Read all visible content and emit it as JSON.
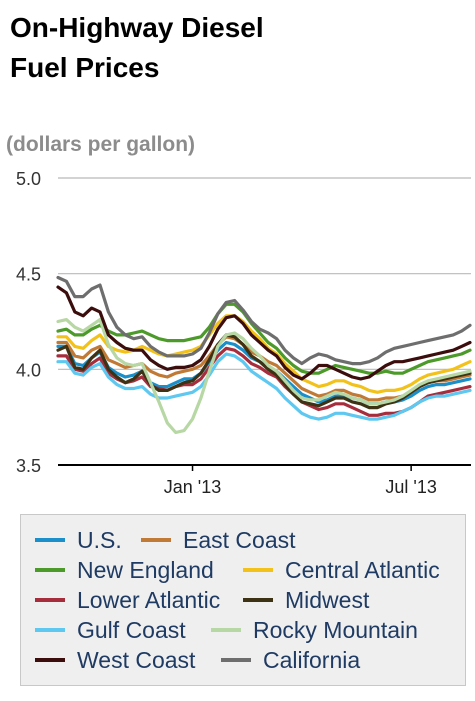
{
  "title_line1": "On-Highway Diesel",
  "title_line2": "Fuel Prices",
  "units": "(dollars per gallon)",
  "chart_data": {
    "type": "line",
    "title": "On-Highway Diesel Fuel Prices",
    "ylabel": "(dollars per gallon)",
    "ylim": [
      3.5,
      5.0
    ],
    "yticks": [
      "5.0",
      "4.5",
      "4.0",
      "3.5"
    ],
    "ytick_values": [
      5.0,
      4.5,
      4.0,
      3.5
    ],
    "xticks": [
      "Jan '13",
      "Jul '13"
    ],
    "xtick_weeks": [
      16,
      42
    ],
    "grid": true,
    "legend_position": "bottom",
    "series": [
      {
        "name": "U.S.",
        "color": "#1a8fc9",
        "values": [
          4.12,
          4.12,
          4.03,
          4.02,
          4.06,
          4.09,
          4.01,
          3.98,
          3.96,
          3.97,
          3.99,
          3.93,
          3.91,
          3.91,
          3.93,
          3.95,
          3.95,
          3.98,
          4.04,
          4.1,
          4.14,
          4.13,
          4.1,
          4.06,
          4.04,
          4.01,
          3.99,
          3.95,
          3.91,
          3.87,
          3.85,
          3.83,
          3.84,
          3.86,
          3.86,
          3.85,
          3.84,
          3.82,
          3.82,
          3.83,
          3.83,
          3.84,
          3.86,
          3.89,
          3.91,
          3.92,
          3.92,
          3.93,
          3.94,
          3.95
        ]
      },
      {
        "name": "East Coast",
        "color": "#c07a35",
        "values": [
          4.14,
          4.14,
          4.07,
          4.06,
          4.1,
          4.12,
          4.05,
          4.03,
          4.01,
          4.02,
          4.03,
          3.99,
          3.97,
          3.96,
          3.98,
          3.99,
          4.0,
          4.02,
          4.07,
          4.13,
          4.17,
          4.16,
          4.13,
          4.09,
          4.07,
          4.04,
          4.02,
          3.98,
          3.94,
          3.9,
          3.88,
          3.86,
          3.87,
          3.89,
          3.89,
          3.87,
          3.86,
          3.84,
          3.84,
          3.85,
          3.85,
          3.86,
          3.88,
          3.91,
          3.93,
          3.94,
          3.94,
          3.95,
          3.96,
          3.97
        ]
      },
      {
        "name": "New England",
        "color": "#4c9a2a",
        "values": [
          4.2,
          4.21,
          4.18,
          4.18,
          4.21,
          4.23,
          4.2,
          4.18,
          4.18,
          4.19,
          4.2,
          4.18,
          4.16,
          4.15,
          4.15,
          4.15,
          4.16,
          4.17,
          4.22,
          4.29,
          4.34,
          4.34,
          4.3,
          4.24,
          4.19,
          4.14,
          4.11,
          4.06,
          4.02,
          3.99,
          3.98,
          3.98,
          4.0,
          4.02,
          4.01,
          4.0,
          3.99,
          3.98,
          3.98,
          3.99,
          3.98,
          3.98,
          4.0,
          4.02,
          4.04,
          4.05,
          4.06,
          4.07,
          4.08,
          4.1
        ]
      },
      {
        "name": "Central Atlantic",
        "color": "#f2c21b",
        "values": [
          4.17,
          4.17,
          4.12,
          4.11,
          4.15,
          4.18,
          4.12,
          4.1,
          4.09,
          4.1,
          4.12,
          4.1,
          4.08,
          4.07,
          4.08,
          4.09,
          4.1,
          4.12,
          4.18,
          4.24,
          4.28,
          4.28,
          4.25,
          4.2,
          4.16,
          4.11,
          4.08,
          4.03,
          3.99,
          3.95,
          3.93,
          3.91,
          3.92,
          3.94,
          3.94,
          3.92,
          3.91,
          3.89,
          3.88,
          3.89,
          3.89,
          3.9,
          3.92,
          3.95,
          3.97,
          3.98,
          3.99,
          4.0,
          4.02,
          4.04
        ]
      },
      {
        "name": "Lower Atlantic",
        "color": "#a62e3c",
        "values": [
          4.07,
          4.07,
          4.0,
          3.99,
          4.03,
          4.06,
          3.98,
          3.95,
          3.93,
          3.94,
          3.96,
          3.91,
          3.9,
          3.89,
          3.91,
          3.92,
          3.92,
          3.95,
          4.01,
          4.07,
          4.11,
          4.1,
          4.07,
          4.03,
          4.01,
          3.98,
          3.96,
          3.91,
          3.87,
          3.83,
          3.81,
          3.79,
          3.8,
          3.82,
          3.82,
          3.8,
          3.78,
          3.76,
          3.76,
          3.77,
          3.77,
          3.78,
          3.8,
          3.83,
          3.86,
          3.87,
          3.88,
          3.89,
          3.9,
          3.91
        ]
      },
      {
        "name": "Midwest",
        "color": "#3e3215",
        "values": [
          4.1,
          4.12,
          4.01,
          4.0,
          4.06,
          4.1,
          4.0,
          3.96,
          3.93,
          3.95,
          3.99,
          3.92,
          3.89,
          3.89,
          3.91,
          3.93,
          3.94,
          3.98,
          4.05,
          4.13,
          4.18,
          4.17,
          4.13,
          4.07,
          4.04,
          4.0,
          3.97,
          3.92,
          3.87,
          3.83,
          3.82,
          3.81,
          3.83,
          3.85,
          3.85,
          3.83,
          3.82,
          3.8,
          3.8,
          3.82,
          3.83,
          3.85,
          3.88,
          3.91,
          3.93,
          3.94,
          3.95,
          3.96,
          3.97,
          3.98
        ]
      },
      {
        "name": "Gulf Coast",
        "color": "#5ec8f0",
        "values": [
          4.04,
          4.04,
          3.98,
          3.97,
          4.01,
          4.03,
          3.96,
          3.92,
          3.9,
          3.9,
          3.91,
          3.87,
          3.85,
          3.85,
          3.86,
          3.87,
          3.88,
          3.91,
          3.97,
          4.04,
          4.08,
          4.07,
          4.04,
          3.99,
          3.96,
          3.93,
          3.9,
          3.85,
          3.81,
          3.77,
          3.75,
          3.74,
          3.75,
          3.77,
          3.77,
          3.76,
          3.75,
          3.74,
          3.74,
          3.75,
          3.76,
          3.78,
          3.8,
          3.83,
          3.85,
          3.86,
          3.86,
          3.87,
          3.88,
          3.89
        ]
      },
      {
        "name": "Rocky Mountain",
        "color": "#b7d7a4",
        "values": [
          4.25,
          4.26,
          4.22,
          4.2,
          4.23,
          4.26,
          4.13,
          4.06,
          4.03,
          4.02,
          4.03,
          3.93,
          3.83,
          3.72,
          3.67,
          3.68,
          3.74,
          3.85,
          3.99,
          4.12,
          4.18,
          4.19,
          4.16,
          4.11,
          4.07,
          4.02,
          3.99,
          3.94,
          3.89,
          3.85,
          3.84,
          3.84,
          3.86,
          3.88,
          3.87,
          3.85,
          3.84,
          3.82,
          3.82,
          3.83,
          3.84,
          3.86,
          3.89,
          3.92,
          3.94,
          3.95,
          3.96,
          3.97,
          3.98,
          3.99
        ]
      },
      {
        "name": "West Coast",
        "color": "#3c0d0d",
        "values": [
          4.43,
          4.4,
          4.3,
          4.28,
          4.32,
          4.3,
          4.18,
          4.14,
          4.11,
          4.1,
          4.1,
          4.05,
          4.02,
          4.0,
          4.01,
          4.01,
          4.02,
          4.05,
          4.12,
          4.21,
          4.27,
          4.28,
          4.24,
          4.18,
          4.14,
          4.1,
          4.07,
          4.01,
          3.97,
          3.95,
          3.98,
          4.02,
          4.02,
          4.0,
          3.98,
          3.96,
          3.95,
          3.96,
          3.99,
          4.02,
          4.04,
          4.04,
          4.05,
          4.06,
          4.07,
          4.08,
          4.09,
          4.1,
          4.12,
          4.14
        ]
      },
      {
        "name": "California",
        "color": "#6e6e6e",
        "values": [
          4.48,
          4.46,
          4.38,
          4.38,
          4.42,
          4.44,
          4.3,
          4.22,
          4.18,
          4.16,
          4.17,
          4.12,
          4.09,
          4.07,
          4.07,
          4.07,
          4.08,
          4.11,
          4.19,
          4.29,
          4.35,
          4.36,
          4.31,
          4.25,
          4.21,
          4.19,
          4.16,
          4.1,
          4.06,
          4.03,
          4.06,
          4.08,
          4.07,
          4.05,
          4.04,
          4.03,
          4.03,
          4.04,
          4.06,
          4.09,
          4.11,
          4.12,
          4.13,
          4.14,
          4.15,
          4.16,
          4.17,
          4.18,
          4.2,
          4.23
        ]
      }
    ]
  }
}
